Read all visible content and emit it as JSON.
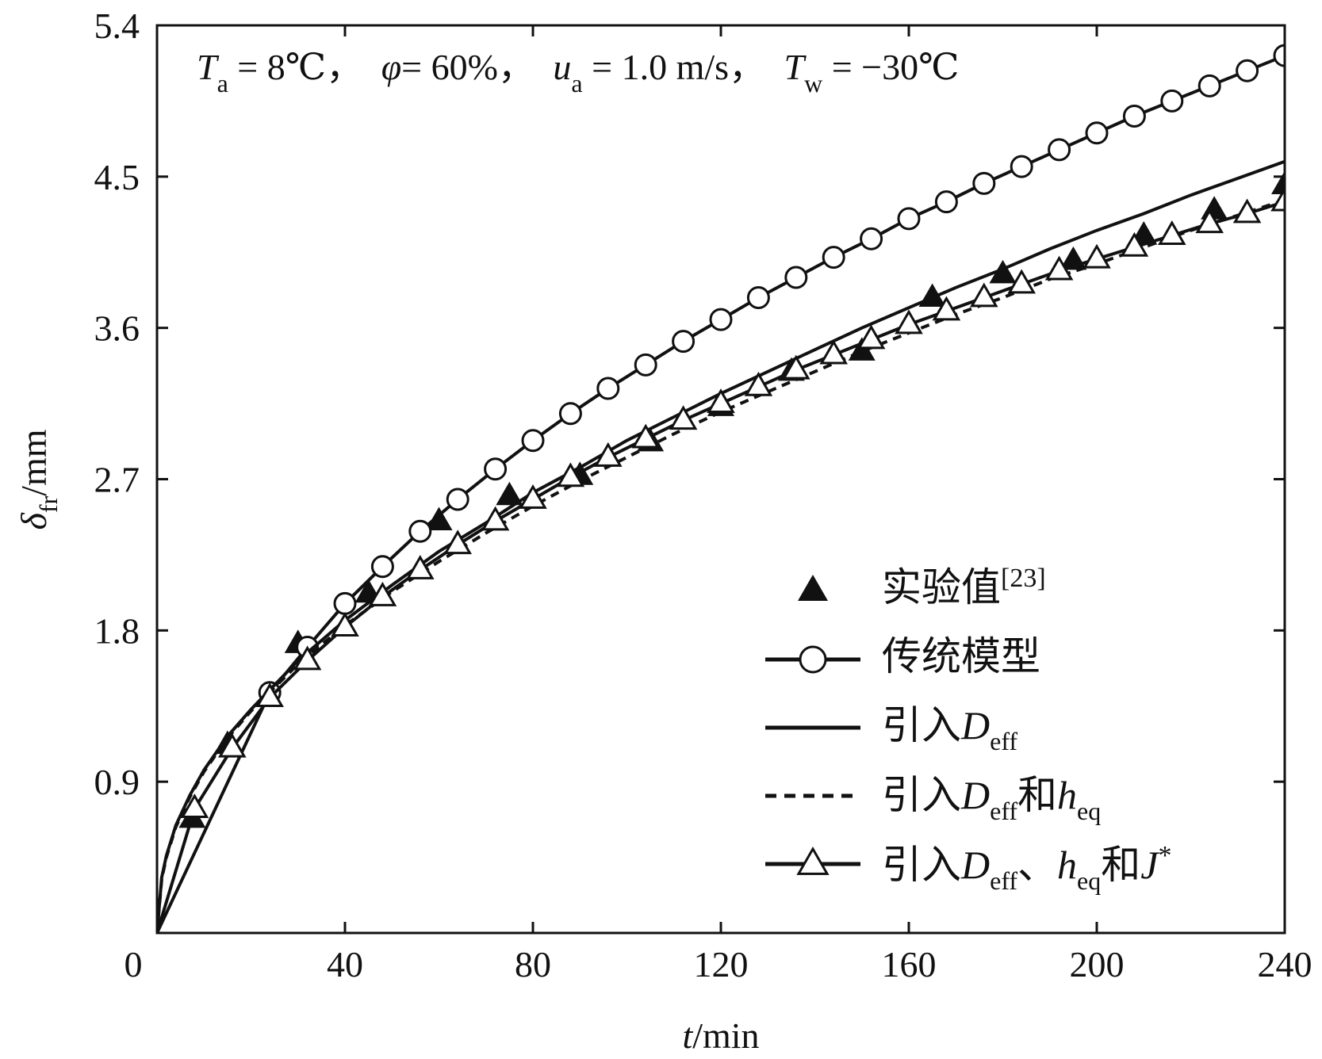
{
  "chart_data": {
    "type": "line",
    "annotation": {
      "t_label": "T",
      "t_sub": "a",
      "t_val": " = 8℃，",
      "phi_label": "φ",
      "phi_val": "= 60%，",
      "u_label": "u",
      "u_sub": "a",
      "u_val": " = 1.0 m/s，",
      "tw_label": "T",
      "tw_sub": "w",
      "tw_val": " = −30℃"
    },
    "xlabel": {
      "var": "t",
      "unit": "/min"
    },
    "ylabel": {
      "var": "δ",
      "sub": "fr",
      "unit": "/mm"
    },
    "xlim": [
      0,
      240
    ],
    "ylim": [
      0,
      5.4
    ],
    "xticks": [
      "0",
      "40",
      "80",
      "120",
      "160",
      "200",
      "240"
    ],
    "yticks": [
      "0.9",
      "1.8",
      "2.7",
      "3.6",
      "4.5",
      "5.4"
    ],
    "legend_position": "bottom-right",
    "legend": {
      "experimental": {
        "main": "实验值",
        "sup": "[23]"
      },
      "traditional": {
        "main": "传统模型"
      },
      "deff": {
        "main": "引入",
        "var": "D",
        "sub": "eff"
      },
      "deff_heq": {
        "main": "引入",
        "var": "D",
        "sub": "eff",
        "mid": "和",
        "var2": "h",
        "sub2": "eq"
      },
      "deff_heq_j": {
        "main": "引入",
        "var": "D",
        "sub": "eff",
        "sep": "、",
        "var2": "h",
        "sub2": "eq",
        "mid": "和",
        "var3": "J",
        "sup3": "*"
      }
    },
    "series": [
      {
        "key": "experimental",
        "style": "filled-triangle",
        "x": [
          7.5,
          15,
          30,
          45,
          60,
          75,
          90,
          105,
          120,
          135,
          150,
          165,
          180,
          195,
          210,
          225,
          240
        ],
        "y": [
          0.68,
          1.12,
          1.72,
          2.02,
          2.45,
          2.6,
          2.72,
          2.92,
          3.13,
          3.34,
          3.46,
          3.78,
          3.92,
          4.0,
          4.15,
          4.3,
          4.45
        ]
      },
      {
        "key": "traditional",
        "style": "line-open-circle",
        "x": [
          0,
          24,
          32,
          40,
          48,
          56,
          64,
          72,
          80,
          88,
          96,
          104,
          112,
          120,
          128,
          136,
          144,
          152,
          160,
          168,
          176,
          184,
          192,
          200,
          208,
          216,
          224,
          232,
          240
        ],
        "y": [
          0,
          1.43,
          1.7,
          1.96,
          2.18,
          2.39,
          2.58,
          2.76,
          2.93,
          3.09,
          3.24,
          3.38,
          3.52,
          3.65,
          3.78,
          3.9,
          4.02,
          4.13,
          4.25,
          4.35,
          4.46,
          4.56,
          4.66,
          4.76,
          4.86,
          4.95,
          5.04,
          5.13,
          5.22
        ]
      },
      {
        "key": "deff",
        "style": "solid",
        "x": [
          0,
          1,
          2,
          4,
          7,
          10,
          15,
          20,
          30,
          40,
          50,
          60,
          70,
          80,
          90,
          100,
          110,
          120,
          130,
          140,
          150,
          160,
          170,
          180,
          190,
          200,
          210,
          220,
          230,
          240
        ],
        "y": [
          0,
          0.33,
          0.46,
          0.64,
          0.82,
          0.97,
          1.17,
          1.33,
          1.62,
          1.86,
          2.07,
          2.27,
          2.44,
          2.62,
          2.77,
          2.93,
          3.07,
          3.21,
          3.34,
          3.47,
          3.6,
          3.72,
          3.84,
          3.95,
          4.07,
          4.18,
          4.28,
          4.39,
          4.49,
          4.59
        ]
      },
      {
        "key": "deff_heq",
        "style": "dashed",
        "x": [
          0,
          1,
          2,
          4,
          7,
          10,
          15,
          20,
          30,
          40,
          50,
          60,
          70,
          80,
          90,
          100,
          110,
          120,
          130,
          140,
          150,
          160,
          170,
          180,
          190,
          200,
          210,
          220,
          230,
          240
        ],
        "y": [
          0,
          0.32,
          0.45,
          0.63,
          0.81,
          0.96,
          1.16,
          1.32,
          1.6,
          1.83,
          2.03,
          2.21,
          2.38,
          2.54,
          2.69,
          2.83,
          2.97,
          3.1,
          3.22,
          3.34,
          3.46,
          3.57,
          3.68,
          3.78,
          3.89,
          3.98,
          4.08,
          4.18,
          4.27,
          4.36
        ]
      },
      {
        "key": "deff_heq_j",
        "style": "line-open-triangle",
        "x": [
          0,
          8,
          16,
          24,
          32,
          40,
          48,
          56,
          64,
          72,
          80,
          88,
          96,
          104,
          112,
          120,
          128,
          136,
          144,
          152,
          160,
          168,
          176,
          184,
          192,
          200,
          208,
          216,
          224,
          232,
          240
        ],
        "y": [
          0,
          0.74,
          1.1,
          1.4,
          1.62,
          1.82,
          2.0,
          2.16,
          2.31,
          2.45,
          2.58,
          2.71,
          2.83,
          2.94,
          3.05,
          3.15,
          3.25,
          3.35,
          3.44,
          3.53,
          3.62,
          3.7,
          3.78,
          3.86,
          3.94,
          4.01,
          4.08,
          4.15,
          4.22,
          4.28,
          4.35
        ]
      }
    ]
  }
}
